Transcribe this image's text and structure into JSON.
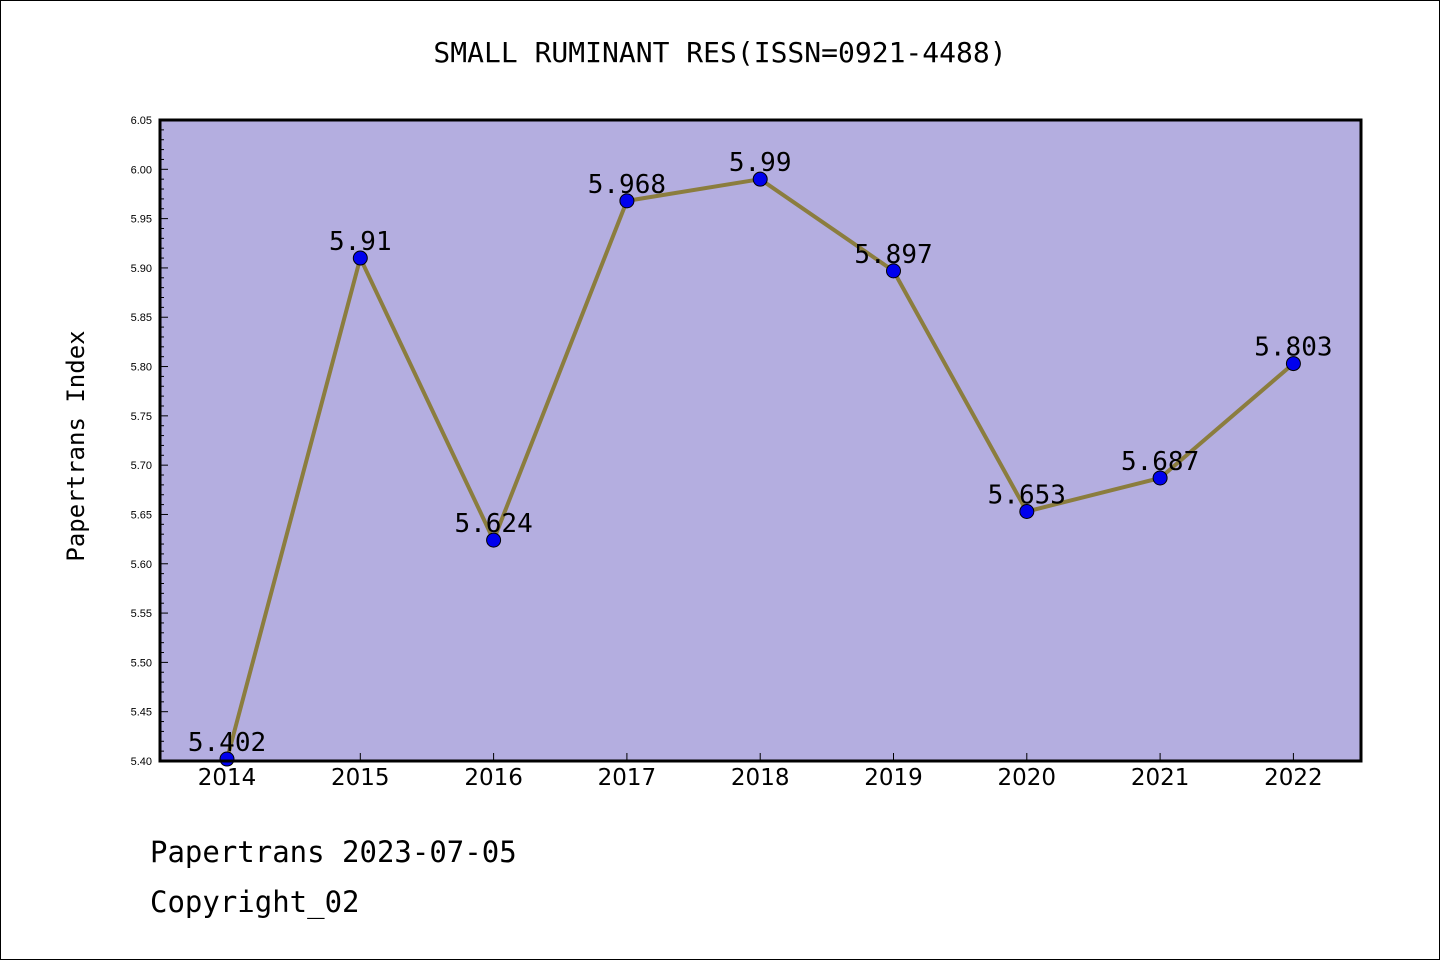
{
  "chart": {
    "title": "SMALL RUMINANT RES(ISSN=0921-4488)",
    "ylabel": "Papertrans Index",
    "footer_line1": "Papertrans 2023-07-05",
    "footer_line2": "Copyright_02"
  },
  "colors": {
    "plot_bg": "#b4aee0",
    "line": "#8b7d3e",
    "marker": "#0000ee",
    "axis": "#000000"
  },
  "chart_data": {
    "type": "line",
    "title": "SMALL RUMINANT RES(ISSN=0921-4488)",
    "xlabel": "",
    "ylabel": "Papertrans Index",
    "categories": [
      "2014",
      "2015",
      "2016",
      "2017",
      "2018",
      "2019",
      "2020",
      "2021",
      "2022"
    ],
    "series": [
      {
        "values": [
          5.402,
          5.91,
          5.624,
          5.968,
          5.99,
          5.897,
          5.653,
          5.687,
          5.803
        ],
        "labels": [
          "5.402",
          "5.91",
          "5.624",
          "5.968",
          "5.99",
          "5.897",
          "5.653",
          "5.687",
          "5.803"
        ]
      }
    ],
    "ylim": [
      5.4,
      6.05
    ],
    "yticks": [
      "5.40",
      "5.45",
      "5.50",
      "5.55",
      "5.60",
      "5.65",
      "5.70",
      "5.75",
      "5.80",
      "5.85",
      "5.90",
      "5.95",
      "6.00",
      "6.05"
    ],
    "grid": false,
    "legend": "none"
  }
}
